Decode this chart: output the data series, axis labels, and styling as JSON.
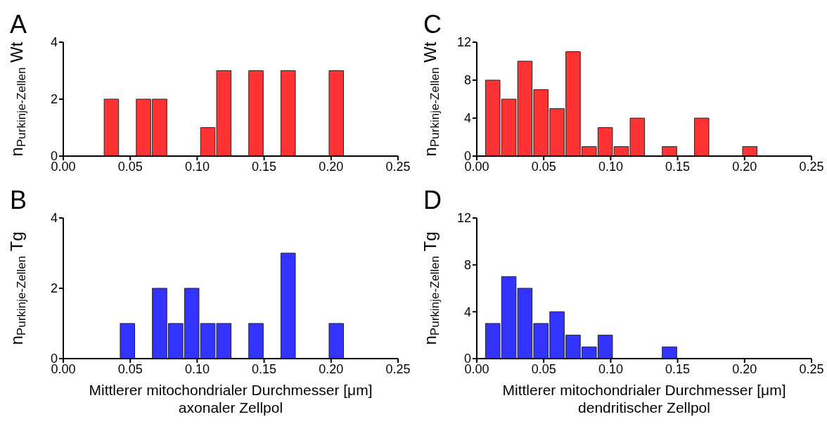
{
  "chart_data": [
    {
      "type": "histogram",
      "title": "A",
      "ylabel": "n$_{Purkinje-Zellen}$ Wt",
      "color": "#ff3333",
      "bins": [
        0.006,
        0.018,
        0.03,
        0.042,
        0.054,
        0.066,
        0.078,
        0.09,
        0.102,
        0.114,
        0.126,
        0.138,
        0.15,
        0.162,
        0.174,
        0.186,
        0.198,
        0.21
      ],
      "values": [
        0,
        0,
        2,
        0,
        2,
        2,
        0,
        0,
        1,
        3,
        0,
        3,
        0,
        3,
        0,
        0,
        3
      ],
      "xlim": [
        0,
        0.25
      ],
      "xticks": [
        {
          "value": 0,
          "label": "0.00"
        },
        {
          "value": 0.05,
          "label": "0.05"
        },
        {
          "value": 0.1,
          "label": "0.10"
        },
        {
          "value": 0.15,
          "label": "0.15"
        },
        {
          "value": 0.2,
          "label": "0.20"
        },
        {
          "value": 0.25,
          "label": "0.25"
        }
      ],
      "ylim": [
        0,
        4
      ],
      "yticks": [
        0,
        2,
        4
      ]
    },
    {
      "type": "histogram",
      "title": "B",
      "ylabel": "n$_{Purkinje-Zellen}$ Tg",
      "xlabel": "Mittlerer mitochondrialer Durchmesser [μm]\naxonaler Zellpol",
      "color": "#3333ff",
      "bins": [
        0.006,
        0.018,
        0.03,
        0.042,
        0.054,
        0.066,
        0.078,
        0.09,
        0.102,
        0.114,
        0.126,
        0.138,
        0.15,
        0.162,
        0.174,
        0.186,
        0.198,
        0.21
      ],
      "values": [
        0,
        0,
        0,
        1,
        0,
        2,
        1,
        2,
        1,
        1,
        0,
        1,
        0,
        3,
        0,
        0,
        1
      ],
      "xlim": [
        0,
        0.25
      ],
      "xticks": [
        {
          "value": 0,
          "label": "0.00"
        },
        {
          "value": 0.05,
          "label": "0.05"
        },
        {
          "value": 0.1,
          "label": "0.10"
        },
        {
          "value": 0.15,
          "label": "0.15"
        },
        {
          "value": 0.2,
          "label": "0.20"
        },
        {
          "value": 0.25,
          "label": "0.25"
        }
      ],
      "ylim": [
        0,
        4
      ],
      "yticks": [
        0,
        2,
        4
      ]
    },
    {
      "type": "histogram",
      "title": "C",
      "ylabel": "n$_{Purkinje-Zellen}$ Wt",
      "color": "#ff3333",
      "bins": [
        0.006,
        0.018,
        0.03,
        0.042,
        0.054,
        0.066,
        0.078,
        0.09,
        0.102,
        0.114,
        0.126,
        0.138,
        0.15,
        0.162,
        0.174,
        0.186,
        0.198,
        0.21
      ],
      "values": [
        8,
        6,
        10,
        7,
        5,
        11,
        1,
        3,
        1,
        4,
        0,
        1,
        0,
        4,
        0,
        0,
        1
      ],
      "xlim": [
        0,
        0.25
      ],
      "xticks": [
        {
          "value": 0,
          "label": "0.00"
        },
        {
          "value": 0.05,
          "label": "0.05"
        },
        {
          "value": 0.1,
          "label": "0.10"
        },
        {
          "value": 0.15,
          "label": "0.15"
        },
        {
          "value": 0.2,
          "label": "0.20"
        },
        {
          "value": 0.25,
          "label": "0.25"
        }
      ],
      "ylim": [
        0,
        12
      ],
      "yticks": [
        0,
        4,
        8,
        12
      ]
    },
    {
      "type": "histogram",
      "title": "D",
      "ylabel": "n$_{Purkinje-Zellen}$ Tg",
      "xlabel": "Mittlerer mitochondrialer Durchmesser [μm]\ndendritischer Zellpol",
      "color": "#3333ff",
      "bins": [
        0.006,
        0.018,
        0.03,
        0.042,
        0.054,
        0.066,
        0.078,
        0.09,
        0.102,
        0.114,
        0.126,
        0.138,
        0.15,
        0.162,
        0.174,
        0.186,
        0.198,
        0.21
      ],
      "values": [
        3,
        7,
        6,
        3,
        4,
        2,
        1,
        2,
        0,
        0,
        0,
        1,
        0,
        0,
        0,
        0,
        0
      ],
      "xlim": [
        0,
        0.25
      ],
      "xticks": [
        {
          "value": 0,
          "label": "0.00"
        },
        {
          "value": 0.05,
          "label": "0.05"
        },
        {
          "value": 0.1,
          "label": "0.10"
        },
        {
          "value": 0.15,
          "label": "0.15"
        },
        {
          "value": 0.2,
          "label": "0.20"
        },
        {
          "value": 0.25,
          "label": "0.25"
        }
      ],
      "ylim": [
        0,
        12
      ],
      "yticks": [
        0,
        4,
        8,
        12
      ]
    }
  ]
}
